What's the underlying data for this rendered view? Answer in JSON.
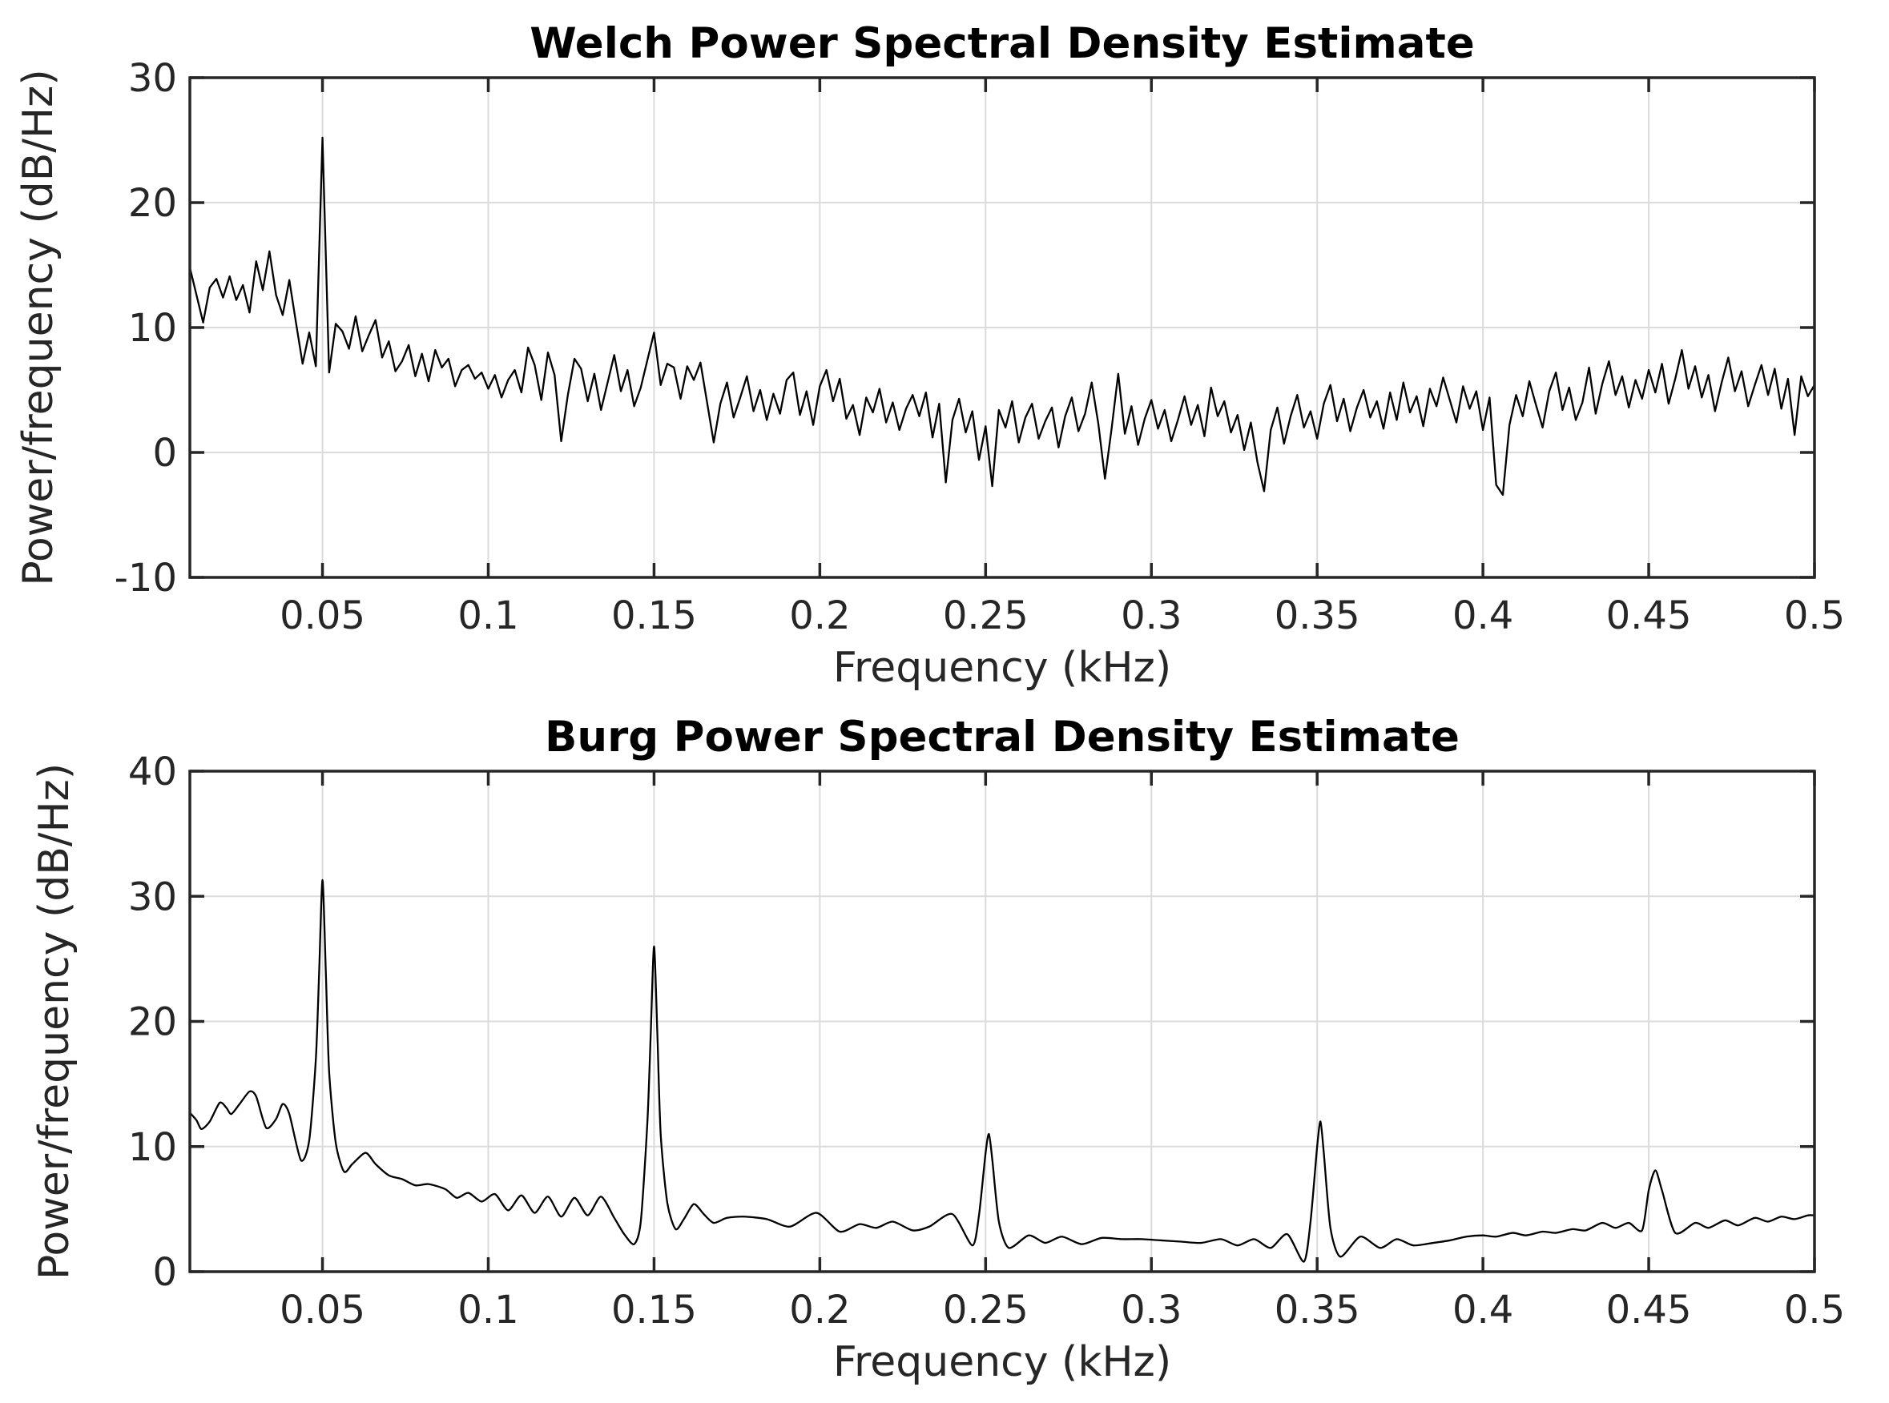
{
  "figure": {
    "background": "#ffffff",
    "axis_color": "#262626",
    "grid_color": "#dbdbdb",
    "line_color": "#000000",
    "title_color": "#000000"
  },
  "chart_data": [
    {
      "type": "line",
      "title": "Welch Power Spectral Density Estimate",
      "xlabel": "Frequency (kHz)",
      "ylabel": "Power/frequency (dB/Hz)",
      "xlim": [
        0.01,
        0.5
      ],
      "ylim": [
        -10,
        30
      ],
      "grid": true,
      "legend_position": "none",
      "xticks": [
        0.05,
        0.1,
        0.15,
        0.2,
        0.25,
        0.3,
        0.35,
        0.4,
        0.45,
        0.5
      ],
      "xtick_labels": [
        "0.05",
        "0.1",
        "0.15",
        "0.2",
        "0.25",
        "0.3",
        "0.35",
        "0.4",
        "0.45",
        "0.5"
      ],
      "yticks": [
        -10,
        0,
        10,
        20,
        30
      ],
      "ytick_labels": [
        "-10",
        "0",
        "10",
        "20",
        "30"
      ],
      "series": [
        {
          "name": "welch-psd",
          "smooth": false,
          "x0": 0.01,
          "dx": 0.002,
          "values": [
            14.8,
            12.6,
            10.4,
            13.2,
            13.9,
            12.4,
            14.1,
            12.2,
            13.4,
            11.2,
            15.3,
            13.0,
            16.1,
            12.6,
            11.0,
            13.8,
            10.4,
            7.1,
            9.6,
            6.9,
            25.2,
            6.4,
            10.3,
            9.7,
            8.3,
            10.9,
            8.1,
            9.4,
            10.6,
            7.6,
            8.9,
            6.5,
            7.3,
            8.6,
            6.1,
            7.9,
            5.7,
            8.2,
            6.8,
            7.5,
            5.3,
            6.6,
            7.0,
            5.9,
            6.4,
            5.1,
            6.2,
            4.4,
            5.8,
            6.6,
            4.8,
            8.4,
            7.0,
            4.2,
            8.0,
            6.2,
            0.9,
            4.6,
            7.5,
            6.7,
            4.1,
            6.3,
            3.4,
            5.6,
            7.8,
            4.9,
            6.6,
            3.7,
            5.2,
            7.4,
            9.6,
            5.4,
            7.1,
            6.8,
            4.3,
            6.9,
            5.8,
            7.2,
            4.0,
            0.8,
            3.9,
            5.6,
            2.8,
            4.4,
            6.1,
            3.3,
            5.0,
            2.6,
            4.7,
            3.1,
            5.8,
            6.4,
            3.0,
            4.9,
            2.2,
            5.3,
            6.6,
            4.1,
            5.9,
            2.7,
            3.8,
            1.4,
            4.4,
            3.2,
            5.1,
            2.4,
            4.0,
            1.8,
            3.5,
            4.6,
            2.9,
            4.8,
            1.2,
            3.9,
            -2.4,
            2.6,
            4.3,
            1.6,
            3.3,
            -0.6,
            2.1,
            -2.7,
            3.4,
            2.0,
            4.1,
            0.8,
            2.8,
            3.9,
            1.1,
            2.5,
            3.6,
            0.4,
            2.9,
            4.4,
            1.7,
            3.1,
            5.6,
            2.3,
            -2.1,
            1.9,
            6.3,
            1.5,
            3.7,
            0.6,
            2.7,
            4.2,
            1.9,
            3.4,
            0.9,
            2.6,
            4.5,
            2.2,
            3.8,
            1.3,
            5.2,
            2.9,
            4.1,
            1.6,
            3.0,
            0.2,
            2.4,
            -0.8,
            -3.1,
            1.8,
            3.6,
            0.7,
            2.9,
            4.6,
            2.0,
            3.3,
            1.1,
            3.9,
            5.4,
            2.5,
            4.3,
            1.7,
            3.6,
            5.0,
            2.8,
            4.1,
            1.9,
            4.8,
            2.6,
            5.6,
            3.2,
            4.5,
            2.1,
            5.1,
            3.7,
            6.0,
            4.2,
            2.4,
            5.3,
            3.5,
            4.9,
            1.8,
            4.4,
            -2.6,
            -3.4,
            2.2,
            4.6,
            2.9,
            5.7,
            3.8,
            2.0,
            4.9,
            6.4,
            3.4,
            5.2,
            2.6,
            4.0,
            6.8,
            3.1,
            5.5,
            7.3,
            4.6,
            6.1,
            3.6,
            5.8,
            4.3,
            6.6,
            4.8,
            7.1,
            3.9,
            5.9,
            8.2,
            5.1,
            6.9,
            4.4,
            6.2,
            3.3,
            5.6,
            7.6,
            4.9,
            6.5,
            3.7,
            5.4,
            7.0,
            4.6,
            6.7,
            3.5,
            5.9,
            1.4,
            6.1,
            4.5,
            5.4
          ]
        }
      ]
    },
    {
      "type": "line",
      "title": "Burg Power Spectral Density Estimate",
      "xlabel": "Frequency (kHz)",
      "ylabel": "Power/frequency (dB/Hz)",
      "xlim": [
        0.01,
        0.5
      ],
      "ylim": [
        0,
        40
      ],
      "grid": true,
      "legend_position": "none",
      "xticks": [
        0.05,
        0.1,
        0.15,
        0.2,
        0.25,
        0.3,
        0.35,
        0.4,
        0.45,
        0.5
      ],
      "xtick_labels": [
        "0.05",
        "0.1",
        "0.15",
        "0.2",
        "0.25",
        "0.3",
        "0.35",
        "0.4",
        "0.45",
        "0.5"
      ],
      "yticks": [
        0,
        10,
        20,
        30,
        40
      ],
      "ytick_labels": [
        "0",
        "10",
        "20",
        "30",
        "40"
      ],
      "series": [
        {
          "name": "burg-psd",
          "smooth": true,
          "points": [
            [
              0.01,
              12.7
            ],
            [
              0.012,
              12.1
            ],
            [
              0.0135,
              11.4
            ],
            [
              0.016,
              12.0
            ],
            [
              0.019,
              13.5
            ],
            [
              0.021,
              13.1
            ],
            [
              0.0225,
              12.6
            ],
            [
              0.025,
              13.4
            ],
            [
              0.028,
              14.4
            ],
            [
              0.03,
              14.0
            ],
            [
              0.033,
              11.5
            ],
            [
              0.036,
              12.2
            ],
            [
              0.038,
              13.4
            ],
            [
              0.04,
              12.6
            ],
            [
              0.0435,
              8.9
            ],
            [
              0.046,
              10.5
            ],
            [
              0.048,
              17.0
            ],
            [
              0.049,
              24.0
            ],
            [
              0.05,
              31.3
            ],
            [
              0.051,
              24.0
            ],
            [
              0.052,
              16.0
            ],
            [
              0.054,
              10.3
            ],
            [
              0.0565,
              8.0
            ],
            [
              0.059,
              8.6
            ],
            [
              0.063,
              9.5
            ],
            [
              0.066,
              8.6
            ],
            [
              0.07,
              7.7
            ],
            [
              0.074,
              7.4
            ],
            [
              0.078,
              6.9
            ],
            [
              0.082,
              7.0
            ],
            [
              0.087,
              6.6
            ],
            [
              0.0905,
              5.9
            ],
            [
              0.094,
              6.3
            ],
            [
              0.098,
              5.6
            ],
            [
              0.102,
              6.2
            ],
            [
              0.106,
              4.9
            ],
            [
              0.11,
              6.1
            ],
            [
              0.114,
              4.7
            ],
            [
              0.118,
              6.0
            ],
            [
              0.122,
              4.4
            ],
            [
              0.126,
              5.9
            ],
            [
              0.13,
              4.5
            ],
            [
              0.134,
              6.0
            ],
            [
              0.138,
              4.3
            ],
            [
              0.141,
              3.0
            ],
            [
              0.144,
              2.2
            ],
            [
              0.146,
              4.0
            ],
            [
              0.148,
              12.0
            ],
            [
              0.149,
              19.0
            ],
            [
              0.15,
              26.0
            ],
            [
              0.151,
              19.0
            ],
            [
              0.152,
              11.0
            ],
            [
              0.154,
              5.5
            ],
            [
              0.1565,
              3.4
            ],
            [
              0.159,
              4.2
            ],
            [
              0.162,
              5.4
            ],
            [
              0.165,
              4.6
            ],
            [
              0.168,
              3.9
            ],
            [
              0.172,
              4.3
            ],
            [
              0.177,
              4.4
            ],
            [
              0.184,
              4.2
            ],
            [
              0.191,
              3.6
            ],
            [
              0.199,
              4.7
            ],
            [
              0.206,
              3.2
            ],
            [
              0.212,
              3.8
            ],
            [
              0.217,
              3.5
            ],
            [
              0.222,
              4.0
            ],
            [
              0.228,
              3.3
            ],
            [
              0.233,
              3.6
            ],
            [
              0.24,
              4.6
            ],
            [
              0.246,
              2.1
            ],
            [
              0.248,
              4.5
            ],
            [
              0.25,
              9.5
            ],
            [
              0.251,
              11.0
            ],
            [
              0.252,
              9.0
            ],
            [
              0.254,
              4.0
            ],
            [
              0.257,
              1.9
            ],
            [
              0.263,
              2.9
            ],
            [
              0.268,
              2.3
            ],
            [
              0.273,
              2.8
            ],
            [
              0.279,
              2.2
            ],
            [
              0.285,
              2.7
            ],
            [
              0.291,
              2.6
            ],
            [
              0.297,
              2.6
            ],
            [
              0.303,
              2.5
            ],
            [
              0.309,
              2.4
            ],
            [
              0.315,
              2.3
            ],
            [
              0.321,
              2.6
            ],
            [
              0.326,
              2.1
            ],
            [
              0.331,
              2.6
            ],
            [
              0.336,
              1.9
            ],
            [
              0.341,
              3.0
            ],
            [
              0.346,
              0.8
            ],
            [
              0.348,
              4.0
            ],
            [
              0.35,
              10.0
            ],
            [
              0.351,
              12.0
            ],
            [
              0.352,
              9.5
            ],
            [
              0.354,
              3.5
            ],
            [
              0.357,
              1.2
            ],
            [
              0.363,
              2.8
            ],
            [
              0.369,
              1.9
            ],
            [
              0.374,
              2.6
            ],
            [
              0.379,
              2.1
            ],
            [
              0.385,
              2.3
            ],
            [
              0.39,
              2.5
            ],
            [
              0.395,
              2.8
            ],
            [
              0.4,
              2.9
            ],
            [
              0.404,
              2.8
            ],
            [
              0.409,
              3.1
            ],
            [
              0.413,
              2.9
            ],
            [
              0.418,
              3.2
            ],
            [
              0.422,
              3.1
            ],
            [
              0.427,
              3.4
            ],
            [
              0.431,
              3.3
            ],
            [
              0.436,
              3.9
            ],
            [
              0.44,
              3.5
            ],
            [
              0.444,
              3.9
            ],
            [
              0.448,
              3.3
            ],
            [
              0.45,
              6.5
            ],
            [
              0.452,
              8.1
            ],
            [
              0.454,
              6.5
            ],
            [
              0.458,
              3.1
            ],
            [
              0.464,
              3.9
            ],
            [
              0.468,
              3.5
            ],
            [
              0.473,
              4.1
            ],
            [
              0.477,
              3.7
            ],
            [
              0.482,
              4.3
            ],
            [
              0.486,
              4.0
            ],
            [
              0.49,
              4.4
            ],
            [
              0.494,
              4.2
            ],
            [
              0.498,
              4.5
            ],
            [
              0.5,
              4.5
            ]
          ]
        }
      ]
    }
  ]
}
